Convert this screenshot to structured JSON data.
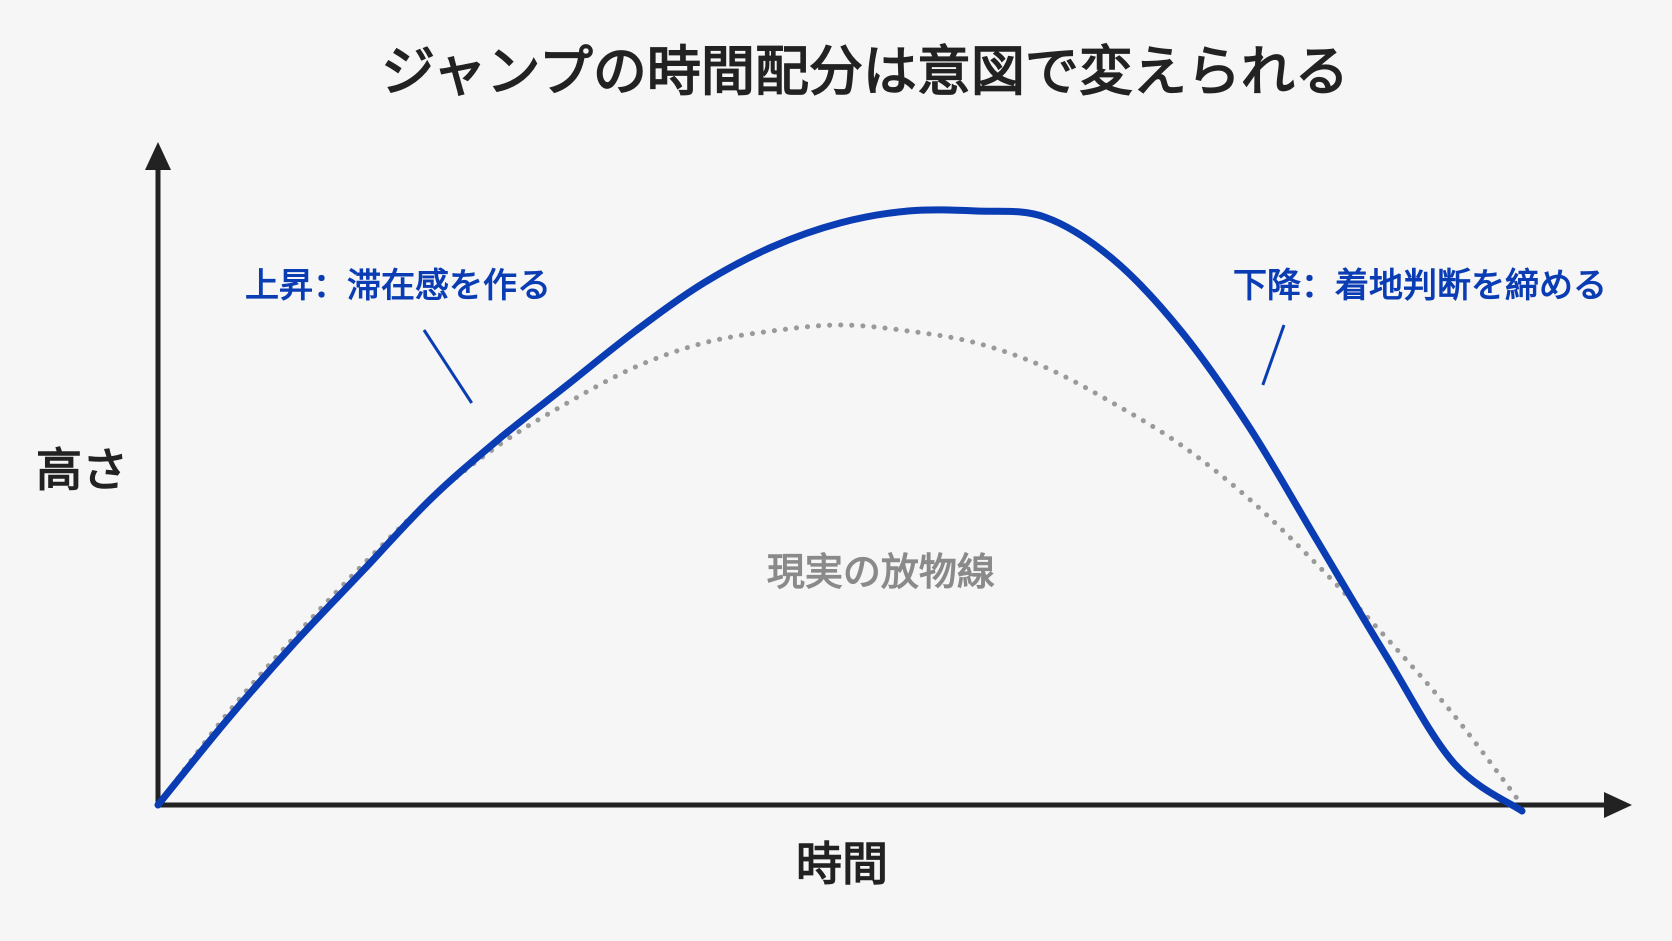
{
  "chart_data": {
    "type": "line",
    "title": "ジャンプの時間配分は意図で変えられる",
    "xlabel": "時間",
    "ylabel": "高さ",
    "xlim": [
      0,
      100
    ],
    "ylim": [
      0,
      100
    ],
    "grid": false,
    "series": [
      {
        "style": "solid",
        "color": "#0a3cb4",
        "x": [
          0,
          5,
          10,
          15,
          20,
          25,
          30,
          35,
          40,
          45,
          50,
          55,
          60,
          65,
          70,
          75,
          80,
          85,
          90,
          95,
          100
        ],
        "y": [
          0,
          14,
          27,
          39,
          51,
          61,
          70,
          79,
          87,
          93,
          97,
          99,
          99,
          98,
          91,
          79,
          63,
          44,
          25,
          7,
          -1
        ]
      },
      {
        "name": "現実の放物線",
        "style": "dotted",
        "color": "#9a9a9a",
        "x": [
          0,
          5,
          10,
          15,
          20,
          25,
          30,
          35,
          40,
          45,
          50,
          55,
          60,
          65,
          70,
          75,
          80,
          85,
          90,
          95,
          100
        ],
        "y": [
          0,
          15,
          28,
          40,
          51,
          60,
          67,
          73,
          77,
          79,
          80,
          79,
          77,
          73,
          67,
          60,
          51,
          40,
          28,
          15,
          0
        ]
      }
    ],
    "annotations": [
      {
        "text": "上昇：滞在感を作る",
        "target_x": 23,
        "target_y": 67,
        "color": "#0a3cb4"
      },
      {
        "text": "下降：着地判断を締める",
        "target_x": 81,
        "target_y": 70,
        "color": "#0a3cb4"
      }
    ],
    "series_label": {
      "text": "現実の放物線",
      "x": 53,
      "y": 39,
      "color": "#8a8a8a"
    }
  },
  "colors": {
    "axis": "#222222",
    "background": "#f6f6f6"
  }
}
